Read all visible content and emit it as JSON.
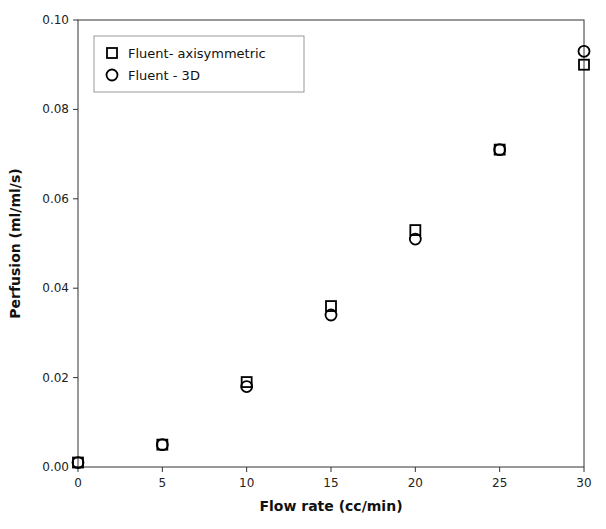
{
  "chart_data": {
    "type": "scatter",
    "xlabel": "Flow rate (cc/min)",
    "ylabel": "Perfusion (ml/ml/s)",
    "xlim": [
      0,
      30
    ],
    "ylim": [
      0,
      0.1
    ],
    "xticks": [
      0,
      5,
      10,
      15,
      20,
      25,
      30
    ],
    "yticks": [
      {
        "value": 0,
        "label": "0.00"
      },
      {
        "value": 0.02,
        "label": "0.02"
      },
      {
        "value": 0.04,
        "label": "0.04"
      },
      {
        "value": 0.06,
        "label": "0.06"
      },
      {
        "value": 0.08,
        "label": "0.08"
      },
      {
        "value": 0.1,
        "label": "0.10"
      }
    ],
    "x": [
      0,
      5,
      10,
      15,
      20,
      25,
      30
    ],
    "series": [
      {
        "name": "Fluent- axisymmetric",
        "color": "black",
        "marker": "square",
        "values": [
          0.001,
          0.005,
          0.019,
          0.036,
          0.053,
          0.071,
          0.09
        ]
      },
      {
        "name": "Fluent - 3D",
        "color": "black",
        "marker": "circle",
        "values": [
          0.001,
          0.005,
          0.018,
          0.034,
          0.051,
          0.071,
          0.093
        ]
      }
    ],
    "legend": "upper left",
    "grid": false
  }
}
